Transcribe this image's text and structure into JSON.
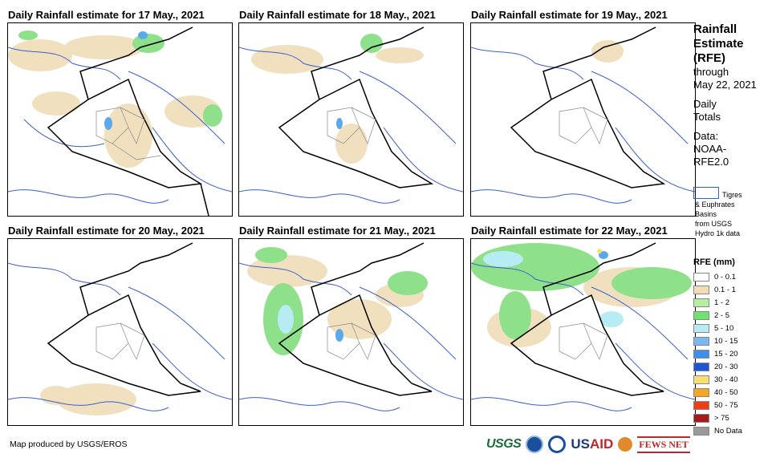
{
  "panels": [
    {
      "title": "Daily Rainfall estimate for 17 May., 2021"
    },
    {
      "title": "Daily Rainfall estimate for 18 May., 2021"
    },
    {
      "title": "Daily Rainfall estimate for 19 May., 2021"
    },
    {
      "title": "Daily Rainfall estimate for 20 May., 2021"
    },
    {
      "title": "Daily Rainfall estimate for 21 May., 2021"
    },
    {
      "title": "Daily Rainfall estimate for 22 May., 2021"
    }
  ],
  "sidebar": {
    "title_lines": [
      "Rainfall",
      "Estimate",
      "(RFE)"
    ],
    "through_label": "through",
    "through_date": "May 22, 2021",
    "daily_lines": [
      "Daily",
      "Totals"
    ],
    "data_lines": [
      "Data:",
      "NOAA-",
      "RFE2.0"
    ]
  },
  "basin_legend": {
    "line1": "Tigres",
    "line2": "& Euphrates",
    "line3": "Basins",
    "line4": "from USGS",
    "line5": "Hydro 1k data",
    "color": "#3a5fcd"
  },
  "legend": {
    "title": "RFE (mm)",
    "items": [
      {
        "label": "0 - 0.1",
        "color": "#ffffff"
      },
      {
        "label": "0.1 - 1",
        "color": "#f0ddb8"
      },
      {
        "label": "1 - 2",
        "color": "#b4f0a0"
      },
      {
        "label": "2 - 5",
        "color": "#6fe26f"
      },
      {
        "label": "5 - 10",
        "color": "#b7ecf2"
      },
      {
        "label": "10 - 15",
        "color": "#7ab8f2"
      },
      {
        "label": "15 - 20",
        "color": "#3f8ee8"
      },
      {
        "label": "20 - 30",
        "color": "#1d55d6"
      },
      {
        "label": "30 - 40",
        "color": "#f7df74"
      },
      {
        "label": "40 - 50",
        "color": "#f5a623"
      },
      {
        "label": "50 - 75",
        "color": "#f03c12"
      },
      {
        "label": "> 75",
        "color": "#a31c1c"
      },
      {
        "label": "No Data",
        "color": "#9a9a9a"
      }
    ]
  },
  "footer": {
    "credit": "Map produced by USGS/EROS",
    "logos": {
      "usgs": "USGS",
      "usaid_us": "US",
      "usaid_aid": "AID",
      "fews": "FEWS NET"
    }
  }
}
